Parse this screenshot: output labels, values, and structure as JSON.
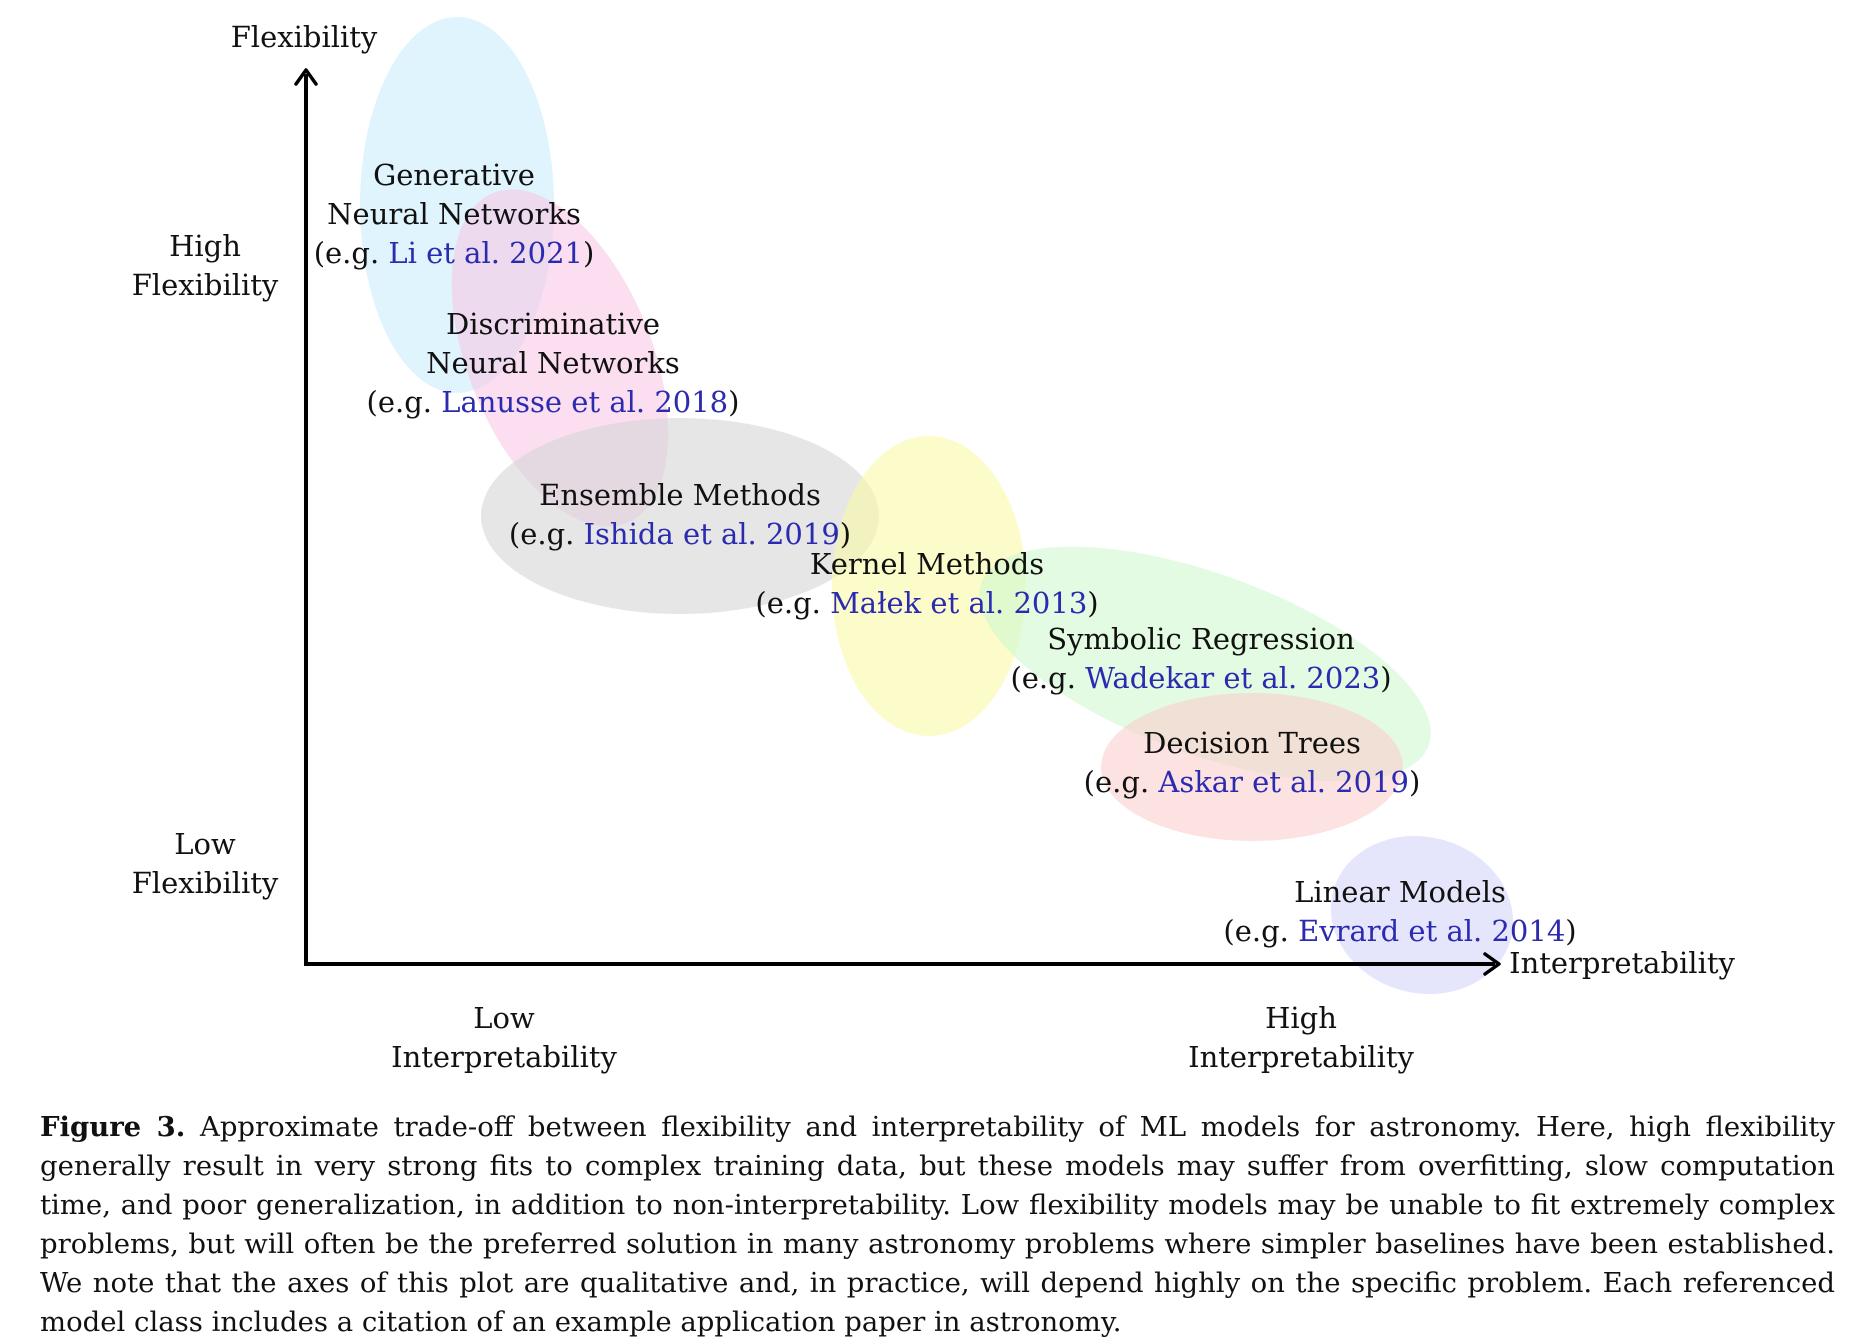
{
  "axes": {
    "y_title": "Flexibility",
    "x_title": "Interpretability",
    "y_high": [
      "High",
      "Flexibility"
    ],
    "y_low": [
      "Low",
      "Flexibility"
    ],
    "x_low": [
      "Low",
      "Interpretability"
    ],
    "x_high": [
      "High",
      "Interpretability"
    ]
  },
  "regions": [
    {
      "id": "generative",
      "lines": [
        "Generative",
        "Neural Networks"
      ],
      "cite_prefix": "(e.g. ",
      "cite": "Li et al. 2021",
      "cite_suffix": ")",
      "color": "#c9ecfb"
    },
    {
      "id": "discriminative",
      "lines": [
        "Discriminative",
        "Neural Networks"
      ],
      "cite_prefix": "(e.g. ",
      "cite": "Lanusse et al. 2018",
      "cite_suffix": ")",
      "color": "#f9c8e6"
    },
    {
      "id": "ensemble",
      "lines": [
        "Ensemble Methods"
      ],
      "cite_prefix": "(e.g. ",
      "cite": "Ishida et al. 2019",
      "cite_suffix": ")",
      "color": "#d6d6d6"
    },
    {
      "id": "kernel",
      "lines": [
        "Kernel Methods"
      ],
      "cite_prefix": "(e.g. ",
      "cite": "Małek et al. 2013",
      "cite_suffix": ")",
      "color": "#fafaa8"
    },
    {
      "id": "symbolic",
      "lines": [
        "Symbolic Regression"
      ],
      "cite_prefix": "(e.g. ",
      "cite": "Wadekar et al. 2023",
      "cite_suffix": ")",
      "color": "#cff8cf"
    },
    {
      "id": "trees",
      "lines": [
        "Decision Trees"
      ],
      "cite_prefix": "(e.g. ",
      "cite": "Askar et al. 2019",
      "cite_suffix": ")",
      "color": "#fbcfcf"
    },
    {
      "id": "linear",
      "lines": [
        "Linear Models"
      ],
      "cite_prefix": "(e.g. ",
      "cite": "Evrard et al. 2014",
      "cite_suffix": ")",
      "color": "#d4d4fa"
    }
  ],
  "caption": {
    "label": "Figure 3.",
    "text": "Approximate trade-off between flexibility and interpretability of ML models for astronomy. Here, high flexibility generally result in very strong fits to complex training data, but these models may suffer from overfitting, slow computation time, and poor generalization, in addition to non-interpretability. Low flexibility models may be unable to fit extremely complex problems, but will often be the preferred solution in many astronomy problems where simpler baselines have been established. We note that the axes of this plot are qualitative and, in practice, will depend highly on the specific problem. Each referenced model class includes a citation of an example application paper in astronomy."
  }
}
